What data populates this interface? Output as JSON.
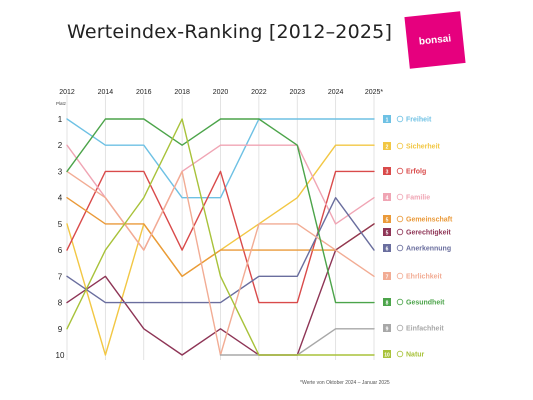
{
  "header": {
    "title": "Werteindex-Ranking [2012–2025]",
    "logo_text": "bonsai"
  },
  "footnote": "*Werte von Oktober 2024 – Januar 2025",
  "chart_data": {
    "type": "line",
    "title": "Werteindex-Ranking [2012–2025]",
    "ylabel": "Platz",
    "x": [
      "2012",
      "2014",
      "2016",
      "2018",
      "2020",
      "2022",
      "2023",
      "2024",
      "2025*"
    ],
    "ylim": [
      1,
      10
    ],
    "y_inverted": true,
    "y_ticks": [
      "1",
      "2",
      "3",
      "4",
      "5",
      "6",
      "7",
      "8",
      "9",
      "10"
    ],
    "grid": "vertical",
    "legend": "right",
    "series": [
      {
        "name": "Freiheit",
        "rank": "1",
        "color": "#6ec1e4",
        "values": [
          1,
          2,
          2,
          4,
          4,
          1,
          1,
          1,
          1
        ]
      },
      {
        "name": "Sicherheit",
        "rank": "2",
        "color": "#f2c744",
        "values": [
          5,
          10,
          5,
          7,
          6,
          5,
          4,
          2,
          2
        ]
      },
      {
        "name": "Erfolg",
        "rank": "3",
        "color": "#d94a4a",
        "values": [
          6,
          3,
          3,
          6,
          3,
          8,
          8,
          3,
          3
        ]
      },
      {
        "name": "Familie",
        "rank": "4",
        "color": "#f0a5b4",
        "values": [
          2,
          4,
          6,
          3,
          2,
          2,
          2,
          5,
          4
        ]
      },
      {
        "name": "Gemeinschaft",
        "rank": "5",
        "color": "#ea9a3a",
        "values": [
          4,
          5,
          5,
          7,
          6,
          6,
          6,
          6,
          5
        ]
      },
      {
        "name": "Gerechtigkeit",
        "rank": "5",
        "color": "#8e3556",
        "values": [
          8,
          7,
          9,
          10,
          9,
          10,
          10,
          6,
          5
        ]
      },
      {
        "name": "Anerkennung",
        "rank": "6",
        "color": "#6a6e9e",
        "values": [
          7,
          8,
          8,
          8,
          8,
          7,
          7,
          4,
          6
        ]
      },
      {
        "name": "Ehrlichkeit",
        "rank": "7",
        "color": "#f2ac94",
        "values": [
          3,
          4,
          6,
          3,
          10,
          5,
          5,
          6,
          7
        ]
      },
      {
        "name": "Gesundheit",
        "rank": "8",
        "color": "#4ca44a",
        "values": [
          3,
          1,
          1,
          2,
          1,
          1,
          2,
          8,
          8
        ]
      },
      {
        "name": "Einfachheit",
        "rank": "9",
        "color": "#a8a8a8",
        "values": [
          null,
          null,
          null,
          null,
          10,
          10,
          10,
          9,
          9
        ]
      },
      {
        "name": "Natur",
        "rank": "10",
        "color": "#a8c23a",
        "values": [
          9,
          6,
          4,
          1,
          7,
          10,
          10,
          10,
          10
        ]
      }
    ]
  }
}
